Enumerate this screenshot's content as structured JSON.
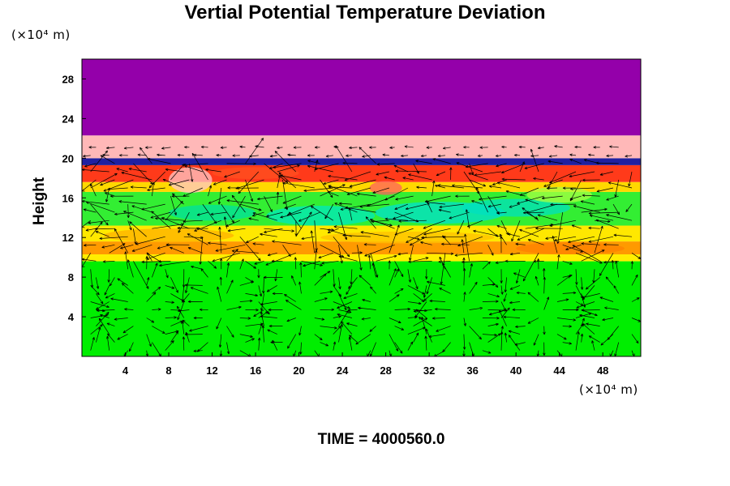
{
  "chart_data": {
    "type": "heatmap",
    "title": "Vertial Potential Temperature Deviation",
    "ylabel": "Height",
    "y_unit": "(×10⁴ m)",
    "x_unit": "(×10⁴ m)",
    "xlim": [
      0,
      51.5
    ],
    "ylim": [
      0,
      30
    ],
    "xticks": [
      4,
      8,
      12,
      16,
      20,
      24,
      28,
      32,
      36,
      40,
      44,
      48
    ],
    "yticks": [
      4,
      8,
      12,
      16,
      20,
      24,
      28
    ],
    "time_label": "TIME = 4000560.0",
    "overlay": "wind vector arrows",
    "bands": [
      {
        "y0": 0,
        "y1": 9.6,
        "color": "#00ee00"
      },
      {
        "y0": 9.6,
        "y1": 10.3,
        "color": "#ffee00"
      },
      {
        "y0": 10.3,
        "y1": 11.6,
        "color": "#ff9a00"
      },
      {
        "y0": 11.6,
        "y1": 13.2,
        "color": "#ffe800"
      },
      {
        "y0": 13.2,
        "y1": 16.6,
        "color": "#33ee33"
      },
      {
        "y0": 16.6,
        "y1": 17.6,
        "color": "#ffd800"
      },
      {
        "y0": 17.6,
        "y1": 19.3,
        "color": "#ff3a1a"
      },
      {
        "y0": 19.3,
        "y1": 20.0,
        "color": "#2020a0"
      },
      {
        "y0": 20.0,
        "y1": 22.3,
        "color": "#ffb8b8"
      },
      {
        "y0": 22.3,
        "y1": 30.0,
        "color": "#9400aa"
      }
    ]
  }
}
